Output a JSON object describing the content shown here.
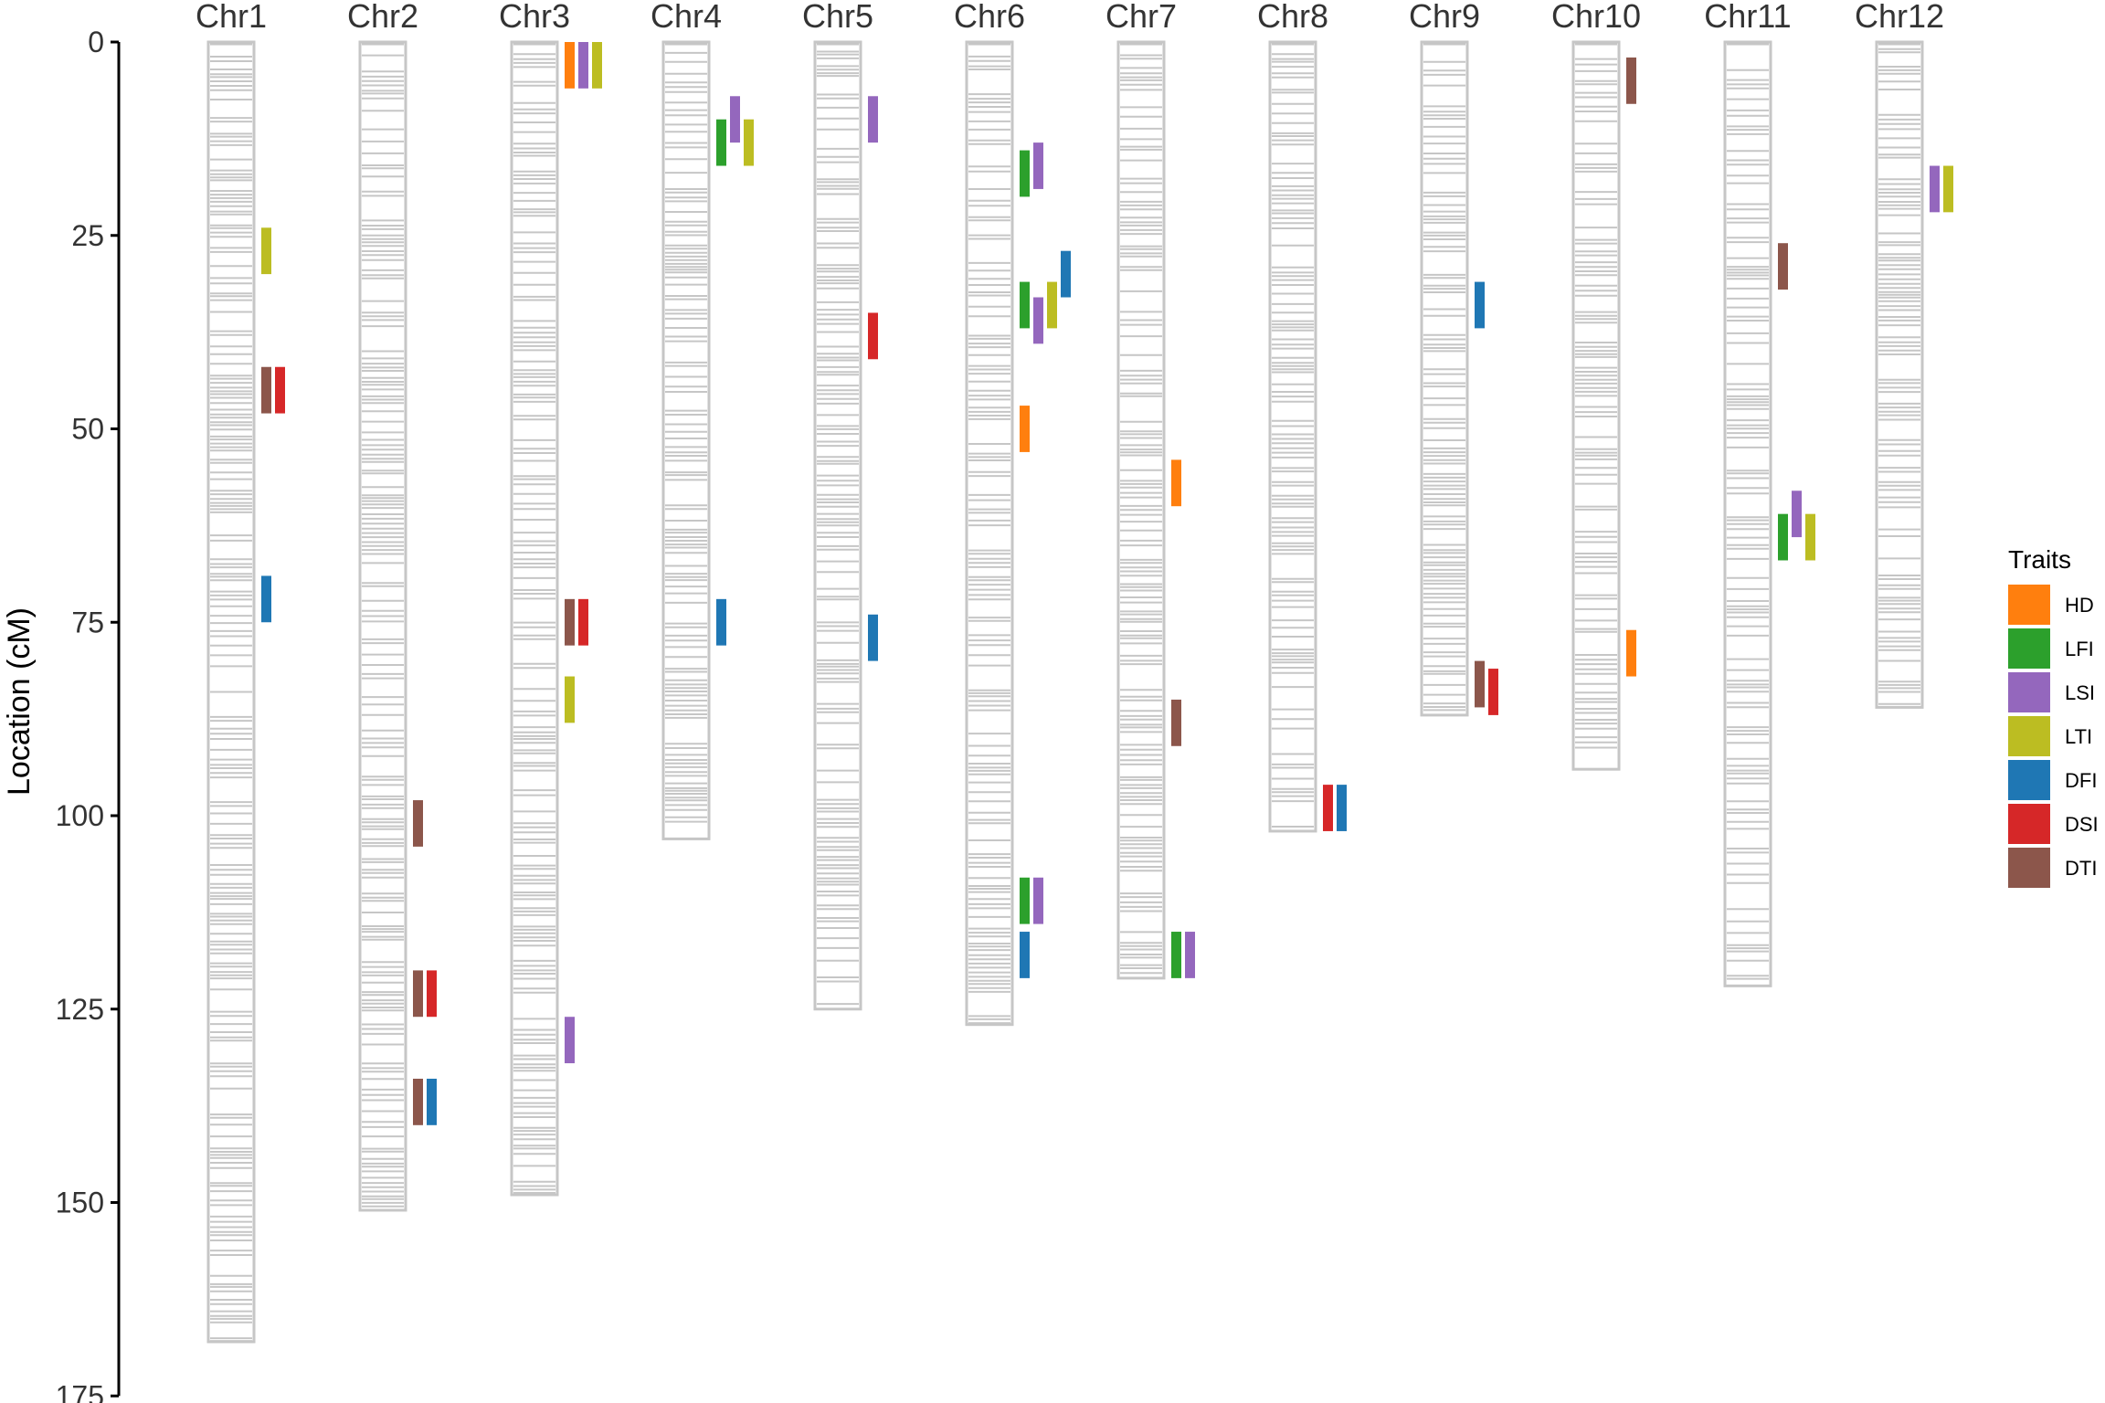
{
  "chart_data": {
    "type": "linkage-map",
    "title": "",
    "ylabel": "Location (cM)",
    "ylim": [
      0,
      175
    ],
    "yticks": [
      0,
      25,
      50,
      75,
      100,
      125,
      150,
      175
    ],
    "chromosomes": [
      {
        "name": "Chr1",
        "length": 168
      },
      {
        "name": "Chr2",
        "length": 151
      },
      {
        "name": "Chr3",
        "length": 149
      },
      {
        "name": "Chr4",
        "length": 103
      },
      {
        "name": "Chr5",
        "length": 125
      },
      {
        "name": "Chr6",
        "length": 127
      },
      {
        "name": "Chr7",
        "length": 121
      },
      {
        "name": "Chr8",
        "length": 102
      },
      {
        "name": "Chr9",
        "length": 87
      },
      {
        "name": "Chr10",
        "length": 94
      },
      {
        "name": "Chr11",
        "length": 122
      },
      {
        "name": "Chr12",
        "length": 86
      }
    ],
    "legend": {
      "title": "Traits",
      "position": "right",
      "items": [
        {
          "label": "HD",
          "color": "#FF7F0E"
        },
        {
          "label": "LFI",
          "color": "#2CA02C"
        },
        {
          "label": "LSI",
          "color": "#9467BD"
        },
        {
          "label": "LTI",
          "color": "#BCBD22"
        },
        {
          "label": "DFI",
          "color": "#1F77B4"
        },
        {
          "label": "DSI",
          "color": "#D62728"
        },
        {
          "label": "DTI",
          "color": "#8C564B"
        }
      ]
    },
    "qtls": [
      {
        "chr": "Chr1",
        "trait": "LTI",
        "start": 24,
        "end": 30,
        "lane": 0
      },
      {
        "chr": "Chr1",
        "trait": "DTI",
        "start": 42,
        "end": 48,
        "lane": 0
      },
      {
        "chr": "Chr1",
        "trait": "DSI",
        "start": 42,
        "end": 48,
        "lane": 1
      },
      {
        "chr": "Chr1",
        "trait": "DFI",
        "start": 69,
        "end": 75,
        "lane": 0
      },
      {
        "chr": "Chr2",
        "trait": "DTI",
        "start": 98,
        "end": 104,
        "lane": 0
      },
      {
        "chr": "Chr2",
        "trait": "DTI",
        "start": 120,
        "end": 126,
        "lane": 0
      },
      {
        "chr": "Chr2",
        "trait": "DSI",
        "start": 120,
        "end": 126,
        "lane": 1
      },
      {
        "chr": "Chr2",
        "trait": "DTI",
        "start": 134,
        "end": 140,
        "lane": 0
      },
      {
        "chr": "Chr2",
        "trait": "DFI",
        "start": 134,
        "end": 140,
        "lane": 1
      },
      {
        "chr": "Chr3",
        "trait": "HD",
        "start": 0,
        "end": 6,
        "lane": 0
      },
      {
        "chr": "Chr3",
        "trait": "LSI",
        "start": 0,
        "end": 6,
        "lane": 1
      },
      {
        "chr": "Chr3",
        "trait": "LTI",
        "start": 0,
        "end": 6,
        "lane": 2
      },
      {
        "chr": "Chr3",
        "trait": "DTI",
        "start": 72,
        "end": 78,
        "lane": 0
      },
      {
        "chr": "Chr3",
        "trait": "DSI",
        "start": 72,
        "end": 78,
        "lane": 1
      },
      {
        "chr": "Chr3",
        "trait": "LTI",
        "start": 82,
        "end": 88,
        "lane": 0
      },
      {
        "chr": "Chr3",
        "trait": "LSI",
        "start": 126,
        "end": 132,
        "lane": 0
      },
      {
        "chr": "Chr4",
        "trait": "LFI",
        "start": 10,
        "end": 16,
        "lane": 0
      },
      {
        "chr": "Chr4",
        "trait": "LSI",
        "start": 7,
        "end": 13,
        "lane": 1
      },
      {
        "chr": "Chr4",
        "trait": "LTI",
        "start": 10,
        "end": 16,
        "lane": 2
      },
      {
        "chr": "Chr4",
        "trait": "DFI",
        "start": 72,
        "end": 78,
        "lane": 0
      },
      {
        "chr": "Chr5",
        "trait": "LSI",
        "start": 7,
        "end": 13,
        "lane": 0
      },
      {
        "chr": "Chr5",
        "trait": "DSI",
        "start": 35,
        "end": 41,
        "lane": 0
      },
      {
        "chr": "Chr5",
        "trait": "DFI",
        "start": 74,
        "end": 80,
        "lane": 0
      },
      {
        "chr": "Chr6",
        "trait": "LFI",
        "start": 14,
        "end": 20,
        "lane": 0
      },
      {
        "chr": "Chr6",
        "trait": "LSI",
        "start": 13,
        "end": 19,
        "lane": 1
      },
      {
        "chr": "Chr6",
        "trait": "LFI",
        "start": 31,
        "end": 37,
        "lane": 0
      },
      {
        "chr": "Chr6",
        "trait": "LSI",
        "start": 33,
        "end": 39,
        "lane": 1
      },
      {
        "chr": "Chr6",
        "trait": "LTI",
        "start": 31,
        "end": 37,
        "lane": 2
      },
      {
        "chr": "Chr6",
        "trait": "DFI",
        "start": 27,
        "end": 33,
        "lane": 3
      },
      {
        "chr": "Chr6",
        "trait": "HD",
        "start": 47,
        "end": 53,
        "lane": 0
      },
      {
        "chr": "Chr6",
        "trait": "LFI",
        "start": 108,
        "end": 114,
        "lane": 0
      },
      {
        "chr": "Chr6",
        "trait": "LSI",
        "start": 108,
        "end": 114,
        "lane": 1
      },
      {
        "chr": "Chr6",
        "trait": "DFI",
        "start": 115,
        "end": 121,
        "lane": 0
      },
      {
        "chr": "Chr7",
        "trait": "HD",
        "start": 54,
        "end": 60,
        "lane": 0
      },
      {
        "chr": "Chr7",
        "trait": "DTI",
        "start": 85,
        "end": 91,
        "lane": 0
      },
      {
        "chr": "Chr7",
        "trait": "LFI",
        "start": 115,
        "end": 121,
        "lane": 0
      },
      {
        "chr": "Chr7",
        "trait": "LSI",
        "start": 115,
        "end": 121,
        "lane": 1
      },
      {
        "chr": "Chr8",
        "trait": "DSI",
        "start": 96,
        "end": 102,
        "lane": 0
      },
      {
        "chr": "Chr8",
        "trait": "DFI",
        "start": 96,
        "end": 102,
        "lane": 1
      },
      {
        "chr": "Chr9",
        "trait": "DFI",
        "start": 31,
        "end": 37,
        "lane": 0
      },
      {
        "chr": "Chr9",
        "trait": "DTI",
        "start": 80,
        "end": 86,
        "lane": 0
      },
      {
        "chr": "Chr9",
        "trait": "DSI",
        "start": 81,
        "end": 87,
        "lane": 1
      },
      {
        "chr": "Chr10",
        "trait": "DTI",
        "start": 2,
        "end": 8,
        "lane": 0
      },
      {
        "chr": "Chr10",
        "trait": "HD",
        "start": 76,
        "end": 82,
        "lane": 0
      },
      {
        "chr": "Chr11",
        "trait": "DTI",
        "start": 26,
        "end": 32,
        "lane": 0
      },
      {
        "chr": "Chr11",
        "trait": "LFI",
        "start": 61,
        "end": 67,
        "lane": 0
      },
      {
        "chr": "Chr11",
        "trait": "LSI",
        "start": 58,
        "end": 64,
        "lane": 1
      },
      {
        "chr": "Chr11",
        "trait": "LTI",
        "start": 61,
        "end": 67,
        "lane": 2
      },
      {
        "chr": "Chr12",
        "trait": "LSI",
        "start": 16,
        "end": 22,
        "lane": 0
      },
      {
        "chr": "Chr12",
        "trait": "LTI",
        "start": 16,
        "end": 22,
        "lane": 1
      }
    ]
  }
}
